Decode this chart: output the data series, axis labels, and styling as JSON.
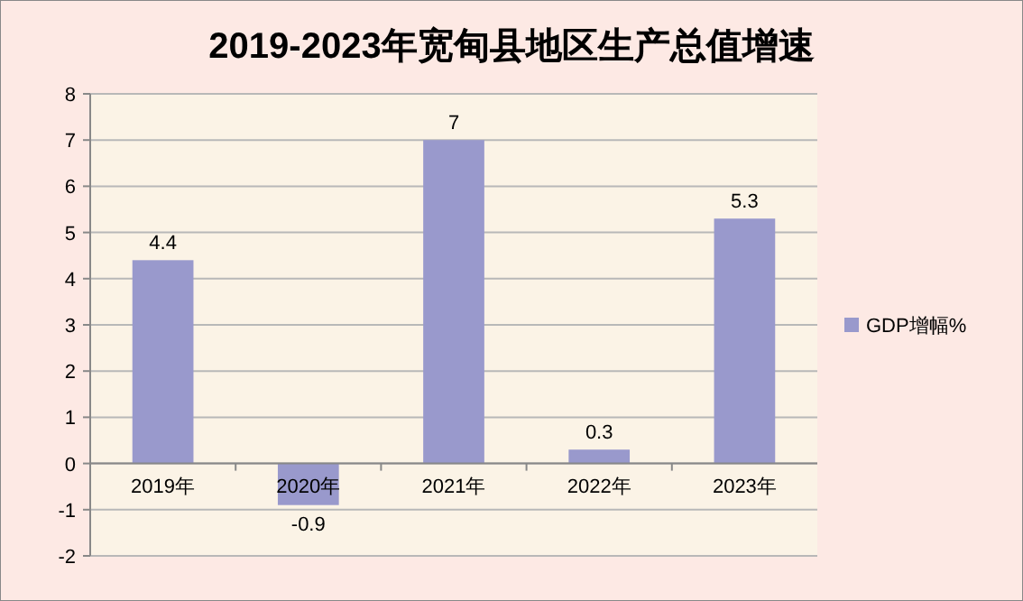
{
  "chart_data": {
    "type": "bar",
    "title": "2019-2023年宽甸县地区生产总值增速",
    "categories": [
      "2019年",
      "2020年",
      "2021年",
      "2022年",
      "2023年"
    ],
    "series": [
      {
        "name": "GDP增幅%",
        "color": "#9999cc",
        "values": [
          4.4,
          -0.9,
          7,
          0.3,
          5.3
        ]
      }
    ],
    "ylim": [
      -2,
      8
    ],
    "yticks": [
      -2,
      -1,
      0,
      1,
      2,
      3,
      4,
      5,
      6,
      7,
      8
    ],
    "grid": "y",
    "legend": "right",
    "data_labels": true
  }
}
